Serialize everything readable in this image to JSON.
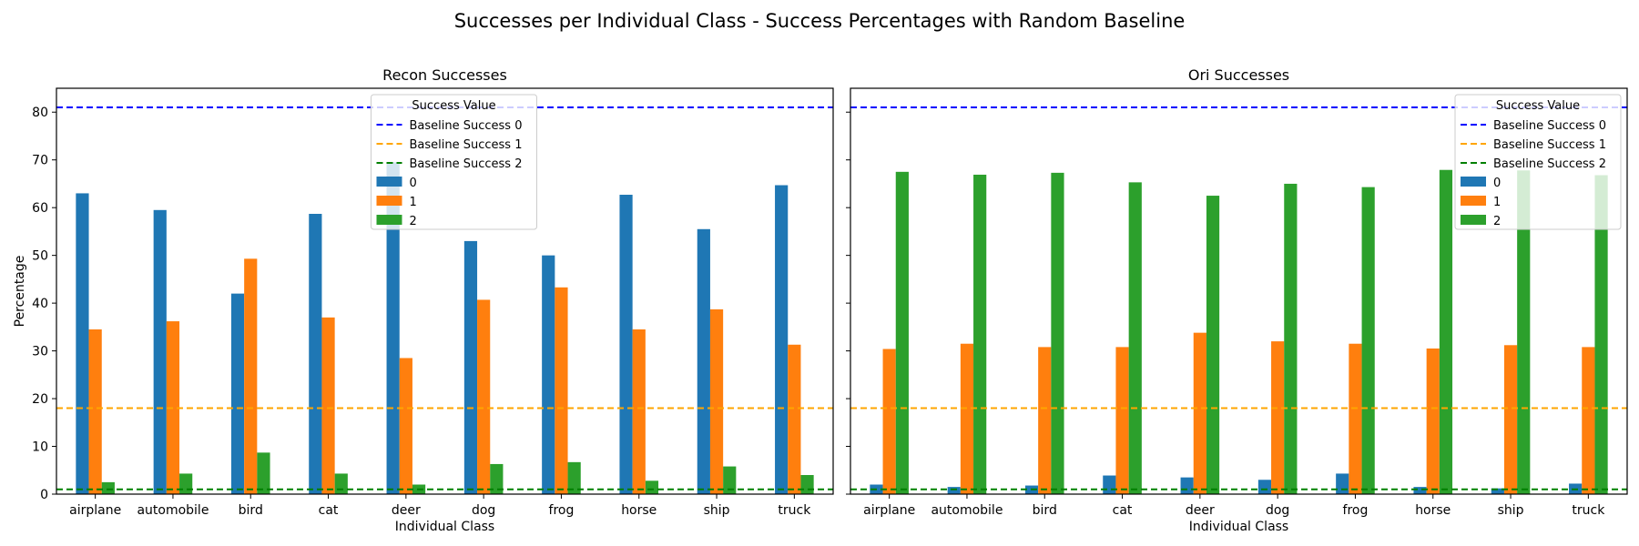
{
  "figure": {
    "title": "Successes per Individual Class - Success Percentages with Random Baseline"
  },
  "legend": {
    "title": "Success Value",
    "entries": [
      "Baseline Success 0",
      "Baseline Success 1",
      "Baseline Success 2",
      "0",
      "1",
      "2"
    ]
  },
  "colors": {
    "s0": "#1f77b4",
    "s1": "#ff7f0e",
    "s2": "#2ca02c",
    "base0": "#0000ff",
    "base1": "#ffa500",
    "base2": "#008000"
  },
  "chart_data": [
    {
      "type": "bar",
      "title": "Recon Successes",
      "xlabel": "Individual Class",
      "ylabel": "Percentage",
      "ylim": [
        0,
        85
      ],
      "yticks": [
        0,
        10,
        20,
        30,
        40,
        50,
        60,
        70,
        80
      ],
      "categories": [
        "airplane",
        "automobile",
        "bird",
        "cat",
        "deer",
        "dog",
        "frog",
        "horse",
        "ship",
        "truck"
      ],
      "series": [
        {
          "name": "0",
          "values": [
            63.0,
            59.5,
            42.0,
            58.7,
            69.5,
            53.0,
            50.0,
            62.7,
            55.5,
            64.7
          ]
        },
        {
          "name": "1",
          "values": [
            34.5,
            36.2,
            49.3,
            37.0,
            28.5,
            40.7,
            43.3,
            34.5,
            38.7,
            31.3
          ]
        },
        {
          "name": "2",
          "values": [
            2.5,
            4.3,
            8.7,
            4.3,
            2.0,
            6.3,
            6.7,
            2.8,
            5.8,
            4.0
          ]
        }
      ],
      "baselines": [
        {
          "name": "Baseline Success 0",
          "value": 81.0
        },
        {
          "name": "Baseline Success 1",
          "value": 18.0
        },
        {
          "name": "Baseline Success 2",
          "value": 1.0
        }
      ],
      "legend_position": "upper center",
      "grid": false
    },
    {
      "type": "bar",
      "title": "Ori Successes",
      "xlabel": "Individual Class",
      "ylabel": "",
      "ylim": [
        0,
        85
      ],
      "yticks": [
        0,
        10,
        20,
        30,
        40,
        50,
        60,
        70,
        80
      ],
      "categories": [
        "airplane",
        "automobile",
        "bird",
        "cat",
        "deer",
        "dog",
        "frog",
        "horse",
        "ship",
        "truck"
      ],
      "series": [
        {
          "name": "0",
          "values": [
            2.0,
            1.5,
            1.8,
            3.9,
            3.5,
            3.0,
            4.3,
            1.5,
            1.2,
            2.2
          ]
        },
        {
          "name": "1",
          "values": [
            30.4,
            31.5,
            30.8,
            30.8,
            33.8,
            32.0,
            31.5,
            30.5,
            31.2,
            30.8
          ]
        },
        {
          "name": "2",
          "values": [
            67.5,
            66.9,
            67.3,
            65.3,
            62.5,
            65.0,
            64.3,
            67.9,
            67.8,
            66.8
          ]
        }
      ],
      "baselines": [
        {
          "name": "Baseline Success 0",
          "value": 81.0
        },
        {
          "name": "Baseline Success 1",
          "value": 18.0
        },
        {
          "name": "Baseline Success 2",
          "value": 1.0
        }
      ],
      "legend_position": "upper right",
      "grid": false
    }
  ]
}
